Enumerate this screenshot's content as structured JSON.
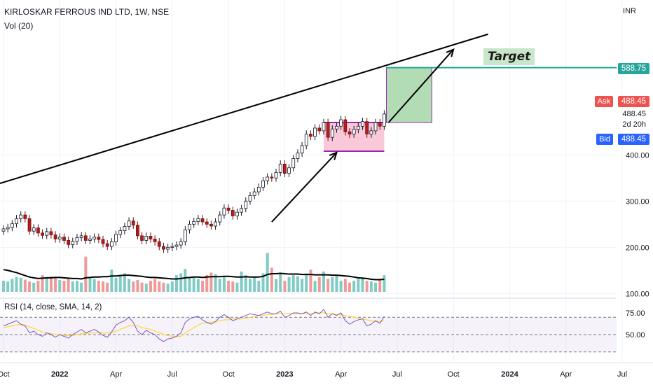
{
  "header": {
    "title": "KIRLOSKAR FERROUS IND LTD, 1W, NSE",
    "volume_indicator": "Vol (20)",
    "rsi_indicator": "RSI (14, close, SMA, 14, 2)",
    "currency": "INR"
  },
  "price_axis": {
    "ticks": [
      {
        "value": 400,
        "label": "400.00"
      },
      {
        "value": 300,
        "label": "300.00"
      },
      {
        "value": 200,
        "label": "200.00"
      },
      {
        "value": 100,
        "label": "100.00"
      }
    ],
    "ylim": [
      90,
      735
    ]
  },
  "badges": {
    "target_price": "588.75",
    "ask_label": "Ask",
    "ask_price": "488.45",
    "last_price": "488.45",
    "countdown": "2d 20h",
    "bid_label": "Bid",
    "bid_price": "488.45"
  },
  "rsi_axis": {
    "ticks": [
      {
        "value": 75,
        "label": "75.00"
      },
      {
        "value": 50,
        "label": "50.00"
      }
    ],
    "upper_band": 70,
    "lower_band": 30
  },
  "time_axis": {
    "ticks": [
      {
        "x": 0,
        "label": "Oct"
      },
      {
        "x": 13,
        "label": "2022"
      },
      {
        "x": 26,
        "label": "Apr"
      },
      {
        "x": 39,
        "label": "Jul"
      },
      {
        "x": 52,
        "label": "Oct"
      },
      {
        "x": 65,
        "label": "2023"
      },
      {
        "x": 78,
        "label": "Apr"
      },
      {
        "x": 91,
        "label": "Jul"
      },
      {
        "x": 104,
        "label": "Oct"
      },
      {
        "x": 117,
        "label": "2024"
      },
      {
        "x": 130,
        "label": "Apr"
      },
      {
        "x": 143,
        "label": "Jul"
      }
    ]
  },
  "annotations": {
    "target_text": "Target",
    "target_level": 588.75,
    "consolidation_box": {
      "x_start": 74,
      "x_end": 88,
      "price_low": 408,
      "price_high": 470
    },
    "projection_box": {
      "x_start": 88.5,
      "x_end": 99,
      "price_low": 470,
      "price_high": 588.75
    },
    "trendline": {
      "x1": -2,
      "price1": 335,
      "x2": 112,
      "price2": 661
    },
    "arrows": [
      {
        "x1": 62,
        "price1": 255,
        "x2": 77,
        "price2": 405
      },
      {
        "x1": 89,
        "price1": 470,
        "x2": 104,
        "price2": 628
      }
    ],
    "colors": {
      "target_line": "#26a69a",
      "trendline": "#000000",
      "box_border": "#9c27b0",
      "consolidation_fill": "#f8bbd0",
      "projection_fill": "#a5d6a7",
      "up_candle": "#ffffff",
      "down_candle": "#b71c1c",
      "vol_up": "#80cbc4",
      "vol_down": "#ef9a9a",
      "rsi_line": "#7e57c2",
      "rsi_sma": "#fdd835",
      "ask": "#ef5350",
      "bid": "#2962ff"
    }
  },
  "chart_data": {
    "type": "candlestick",
    "title": "KIRLOSKAR FERROUS IND LTD, 1W, NSE",
    "xlabel": "",
    "ylabel": "",
    "interval": "1W",
    "x_ticks": [
      "Oct",
      "2022",
      "Apr",
      "Jul",
      "Oct",
      "2023",
      "Apr",
      "Jul",
      "Oct",
      "2024",
      "Apr",
      "Jul"
    ],
    "close": [
      240,
      243,
      251,
      262,
      270,
      262,
      235,
      242,
      231,
      226,
      234,
      227,
      218,
      222,
      215,
      206,
      213,
      221,
      225,
      215,
      218,
      222,
      217,
      208,
      202,
      212,
      228,
      236,
      245,
      257,
      248,
      225,
      215,
      224,
      218,
      212,
      202,
      196,
      200,
      202,
      205,
      212,
      238,
      250,
      256,
      262,
      255,
      250,
      246,
      255,
      270,
      285,
      280,
      268,
      276,
      284,
      300,
      312,
      320,
      330,
      344,
      352,
      350,
      362,
      380,
      360,
      372,
      392,
      404,
      420,
      445,
      440,
      458,
      452,
      470,
      438,
      456,
      462,
      476,
      450,
      445,
      455,
      462,
      472,
      445,
      452,
      470,
      462,
      488.45
    ],
    "volume": [
      30,
      28,
      35,
      40,
      38,
      33,
      28,
      25,
      30,
      45,
      38,
      42,
      38,
      32,
      30,
      35,
      28,
      30,
      25,
      95,
      40,
      35,
      30,
      28,
      25,
      60,
      38,
      45,
      50,
      35,
      28,
      32,
      25,
      22,
      30,
      35,
      28,
      25,
      22,
      28,
      45,
      50,
      62,
      40,
      38,
      35,
      30,
      45,
      52,
      48,
      35,
      40,
      30,
      28,
      25,
      55,
      45,
      35,
      40,
      30,
      50,
      105,
      65,
      35,
      48,
      30,
      40,
      45,
      42,
      35,
      50,
      60,
      30,
      40,
      55,
      35,
      40,
      45,
      30,
      35,
      25,
      30,
      35,
      40,
      30,
      28,
      25,
      35,
      45
    ],
    "volume_ma": [
      60,
      58,
      55,
      52,
      48,
      44,
      40,
      38,
      36,
      37,
      38,
      38,
      39,
      39,
      38,
      37,
      36,
      36,
      35,
      38,
      39,
      40,
      40,
      41,
      41,
      43,
      43,
      44,
      45,
      45,
      44,
      43,
      42,
      40,
      39,
      39,
      38,
      37,
      36,
      35,
      35,
      36,
      38,
      39,
      40,
      40,
      39,
      40,
      41,
      41,
      41,
      42,
      42,
      41,
      40,
      40,
      41,
      40,
      40,
      40,
      42,
      47,
      49,
      49,
      50,
      49,
      48,
      48,
      48,
      47,
      47,
      47,
      46,
      46,
      46,
      46,
      45,
      45,
      44,
      43,
      42,
      40,
      38,
      37,
      36,
      34,
      33,
      33,
      34
    ],
    "rsi": [
      60,
      62,
      64,
      66,
      62,
      60,
      52,
      54,
      50,
      48,
      52,
      50,
      47,
      50,
      48,
      46,
      50,
      53,
      56,
      52,
      54,
      56,
      53,
      49,
      47,
      53,
      61,
      64,
      66,
      70,
      64,
      54,
      50,
      55,
      52,
      50,
      45,
      42,
      45,
      46,
      48,
      52,
      64,
      68,
      70,
      71,
      67,
      64,
      62,
      65,
      70,
      73,
      70,
      66,
      68,
      70,
      72,
      74,
      73,
      72,
      74,
      76,
      74,
      74,
      77,
      70,
      72,
      75,
      75,
      74,
      76,
      72,
      76,
      74,
      79,
      70,
      74,
      72,
      75,
      66,
      62,
      65,
      67,
      68,
      60,
      62,
      66,
      63,
      71
    ],
    "rsi_sma": [
      58,
      59,
      60,
      61,
      62,
      61,
      59,
      57,
      55,
      53,
      52,
      51,
      50,
      50,
      49,
      49,
      49,
      50,
      51,
      51,
      52,
      52,
      52,
      52,
      52,
      52,
      54,
      56,
      58,
      60,
      61,
      60,
      58,
      57,
      56,
      54,
      52,
      50,
      49,
      48,
      48,
      48,
      52,
      55,
      58,
      61,
      63,
      64,
      64,
      65,
      66,
      67,
      67,
      68,
      68,
      68,
      69,
      70,
      71,
      72,
      72,
      73,
      73,
      74,
      74,
      74,
      74,
      74,
      74,
      74,
      74,
      74,
      75,
      75,
      75,
      74,
      74,
      73,
      73,
      72,
      71,
      70,
      69,
      68,
      67,
      66,
      65,
      65,
      66
    ]
  }
}
